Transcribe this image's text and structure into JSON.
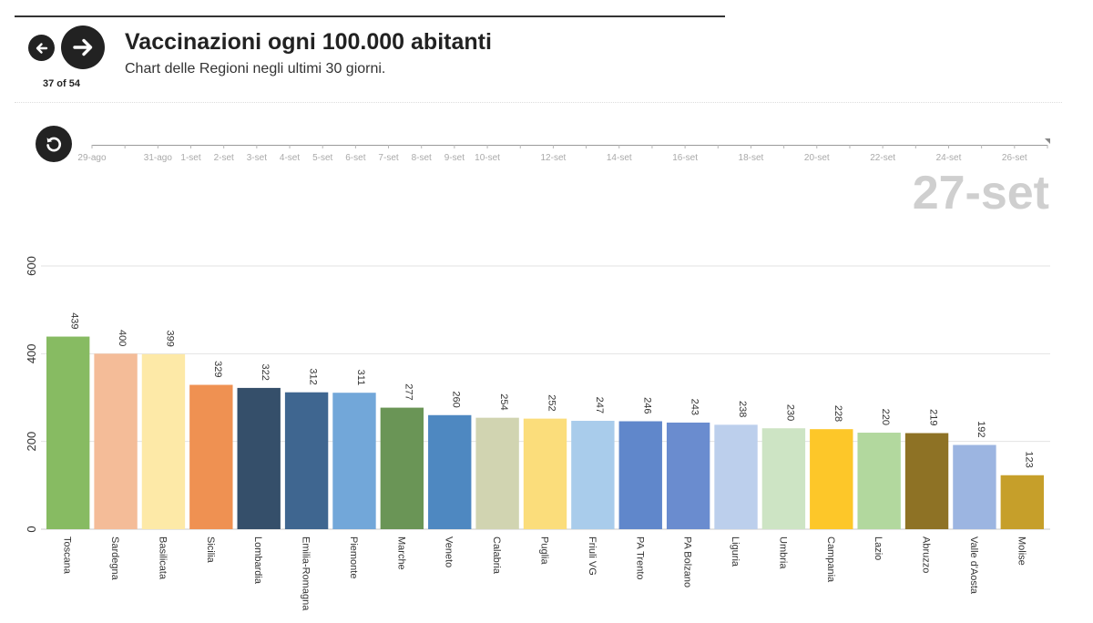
{
  "header": {
    "title": "Vaccinazioni ogni 100.000 abitanti",
    "subtitle": "Chart delle Regioni negli ultimi 30 giorni.",
    "slide_counter": "37 of 54"
  },
  "icons": {
    "prev": "arrow-left-icon",
    "next": "arrow-right-icon",
    "replay": "replay-icon"
  },
  "timeline": {
    "labels": [
      "29-ago",
      "31-ago",
      "1-set",
      "2-set",
      "3-set",
      "4-set",
      "5-set",
      "6-set",
      "7-set",
      "8-set",
      "9-set",
      "10-set",
      "12-set",
      "14-set",
      "16-set",
      "18-set",
      "20-set",
      "22-set",
      "24-set",
      "26-set"
    ],
    "current_date": "27-set"
  },
  "chart_data": {
    "type": "bar",
    "categories": [
      "Toscana",
      "Sardegna",
      "Basilicata",
      "Sicilia",
      "Lombardia",
      "Emilia-Romagna",
      "Piemonte",
      "Marche",
      "Veneto",
      "Calabria",
      "Puglia",
      "Friuli VG",
      "PA Trento",
      "PA Bolzano",
      "Liguria",
      "Umbria",
      "Campania",
      "Lazio",
      "Abruzzo",
      "Valle d'Aosta",
      "Molise"
    ],
    "values": [
      439,
      400,
      399,
      329,
      322,
      312,
      311,
      277,
      260,
      254,
      252,
      247,
      246,
      243,
      238,
      230,
      228,
      220,
      219,
      192,
      123
    ],
    "colors": [
      "#87bb62",
      "#f4bc98",
      "#fde9a7",
      "#ef9152",
      "#354f6a",
      "#3f6690",
      "#72a7d9",
      "#6a9556",
      "#4e88c1",
      "#d1d4b1",
      "#fbdd7b",
      "#a9cceb",
      "#6087cb",
      "#6a8ccf",
      "#bccfec",
      "#cde4c4",
      "#fdc729",
      "#b2d89e",
      "#8e7225",
      "#9cb5e1",
      "#c69f2a"
    ],
    "xlabel": "",
    "ylabel": "",
    "ylim": [
      0,
      600
    ],
    "yticks": [
      0,
      200,
      400,
      600
    ],
    "grid": true
  }
}
